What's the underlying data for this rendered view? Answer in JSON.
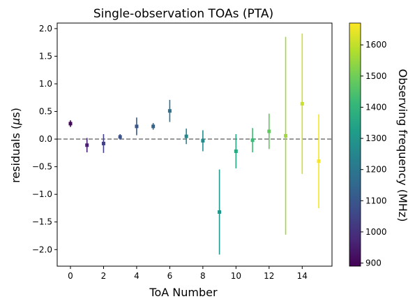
{
  "chart_data": {
    "type": "scatter",
    "title": "Single-observation TOAs (PTA)",
    "xlabel": "ToA Number",
    "ylabel_prefix": "residuals (",
    "ylabel_mu": "μ",
    "ylabel_unit": "s)",
    "colorbar_label": "Observing frequency (MHz)",
    "xlim": [
      -0.8,
      15.8
    ],
    "ylim": [
      -2.3,
      2.1
    ],
    "xticks": [
      0,
      2,
      4,
      6,
      8,
      10,
      12,
      14
    ],
    "yticks": [
      -2.0,
      -1.5,
      -1.0,
      -0.5,
      0.0,
      0.5,
      1.0,
      1.5,
      2.0
    ],
    "ytick_labels": [
      "−2.0",
      "−1.5",
      "−1.0",
      "−0.5",
      "0.0",
      "0.5",
      "1.0",
      "1.5",
      "2.0"
    ],
    "colorbar_range": [
      890,
      1670
    ],
    "colorbar_ticks": [
      900,
      1000,
      1100,
      1200,
      1300,
      1400,
      1500,
      1600
    ],
    "colormap": "viridis",
    "reference_line": {
      "y": 0.0,
      "style": "dashed",
      "color": "#808080"
    },
    "grid": false,
    "points": [
      {
        "x": 0,
        "y": 0.28,
        "yerr": 0.06,
        "freq": 900
      },
      {
        "x": 1,
        "y": -0.11,
        "yerr": 0.13,
        "freq": 960
      },
      {
        "x": 2,
        "y": -0.08,
        "yerr": 0.17,
        "freq": 1040
      },
      {
        "x": 3,
        "y": 0.04,
        "yerr": 0.05,
        "freq": 1080
      },
      {
        "x": 4,
        "y": 0.23,
        "yerr": 0.16,
        "freq": 1100
      },
      {
        "x": 5,
        "y": 0.23,
        "yerr": 0.06,
        "freq": 1140
      },
      {
        "x": 6,
        "y": 0.51,
        "yerr": 0.2,
        "freq": 1180
      },
      {
        "x": 7,
        "y": 0.05,
        "yerr": 0.14,
        "freq": 1250
      },
      {
        "x": 8,
        "y": -0.03,
        "yerr": 0.19,
        "freq": 1270
      },
      {
        "x": 9,
        "y": -1.32,
        "yerr": 0.77,
        "freq": 1300
      },
      {
        "x": 10,
        "y": -0.22,
        "yerr": 0.31,
        "freq": 1360
      },
      {
        "x": 11,
        "y": -0.02,
        "yerr": 0.22,
        "freq": 1420
      },
      {
        "x": 12,
        "y": 0.14,
        "yerr": 0.32,
        "freq": 1480
      },
      {
        "x": 13,
        "y": 0.06,
        "yerr": 1.79,
        "freq": 1560
      },
      {
        "x": 14,
        "y": 0.64,
        "yerr": 1.27,
        "freq": 1610
      },
      {
        "x": 15,
        "y": -0.4,
        "yerr": 0.85,
        "freq": 1660
      }
    ]
  }
}
